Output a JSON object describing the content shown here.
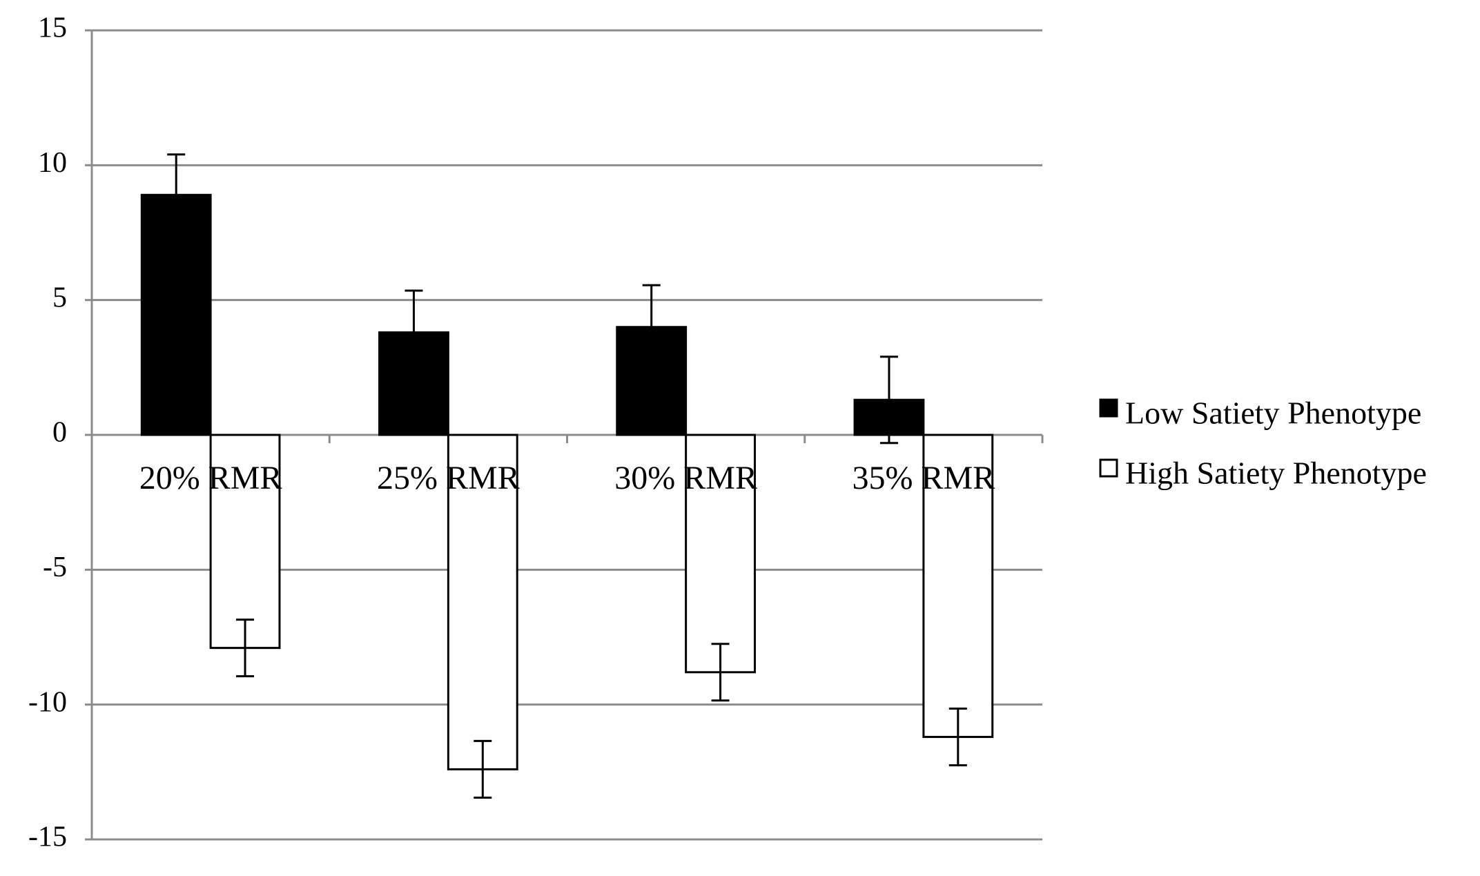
{
  "chart_data": {
    "type": "bar",
    "categories": [
      "20% RMR",
      "25% RMR",
      "30% RMR",
      "35% RMR"
    ],
    "series": [
      {
        "name": "Low Satiety Phenotype",
        "color": "#000000",
        "values": [
          8.9,
          3.8,
          4.0,
          1.3
        ],
        "error": [
          1.5,
          1.55,
          1.55,
          1.6
        ]
      },
      {
        "name": "High Satiety Phenotype",
        "color": "#ffffff",
        "values": [
          -7.9,
          -12.4,
          -8.8,
          -11.2
        ],
        "error": [
          1.05,
          1.05,
          1.05,
          1.05
        ]
      }
    ],
    "ylim": [
      -15,
      15
    ],
    "yticks": [
      -15,
      -10,
      -5,
      0,
      5,
      10,
      15
    ],
    "grid": true,
    "legend": "right"
  }
}
